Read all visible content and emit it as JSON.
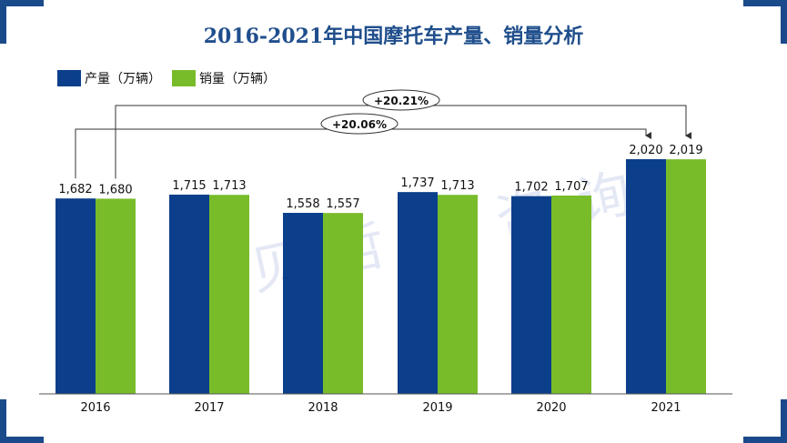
{
  "chart_data": {
    "type": "bar",
    "title": "2016-2021年中国摩托车产量、销量分析",
    "categories": [
      "2016",
      "2017",
      "2018",
      "2019",
      "2020",
      "2021"
    ],
    "series": [
      {
        "name": "产量（万辆）",
        "color": "#0b3f8b",
        "values": [
          1682,
          1715,
          1558,
          1737,
          1702,
          2020
        ],
        "labels": [
          "1,682",
          "1,715",
          "1,558",
          "1,737",
          "1,702",
          "2,020"
        ]
      },
      {
        "name": "销量（万辆）",
        "color": "#78bc2a",
        "values": [
          1680,
          1713,
          1557,
          1713,
          1707,
          2019
        ],
        "labels": [
          "1,680",
          "1,713",
          "1,557",
          "1,713",
          "1,707",
          "2,019"
        ]
      }
    ],
    "annotations": [
      {
        "label": "+20.21%",
        "from_category": "2016",
        "from_series": "销量（万辆）",
        "to_category": "2021",
        "to_series": "销量（万辆）"
      },
      {
        "label": "+20.06%",
        "from_category": "2016",
        "from_series": "产量（万辆）",
        "to_category": "2021",
        "to_series": "产量（万辆）"
      }
    ],
    "legend_position": "top-left",
    "grid": false
  },
  "watermark": "贝哲斯咨询",
  "colors": {
    "title": "#1f4e8c",
    "frame": "#1a4a8a"
  }
}
